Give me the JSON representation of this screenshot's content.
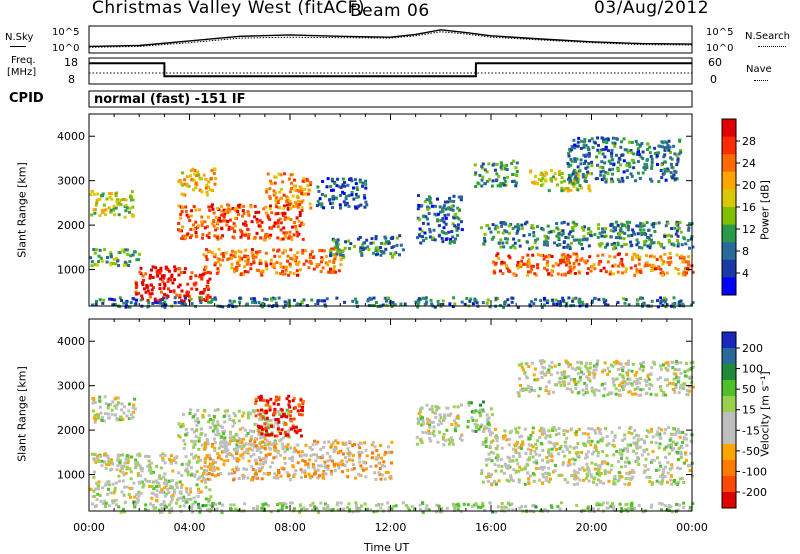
{
  "header": {
    "title": "Christmas Valley West (fitACF)",
    "beam": "Beam 06",
    "date": "03/Aug/2012"
  },
  "panels": {
    "nsky_label": "N.Sky",
    "nsearch_label": "N.Search",
    "freq_label_1": "Freq.",
    "freq_label_2": "[MHz]",
    "nave_label": "Nave",
    "cpid_label": "CPID",
    "cpid_value": "normal (fast) -151 IF",
    "noise_ticks": [
      "10^5",
      "10^0"
    ],
    "freq_ticks": [
      "18",
      "8"
    ],
    "nave_ticks": [
      "60",
      "0"
    ]
  },
  "axes": {
    "ylabel": "Slant Range [km]",
    "xlabel": "Time UT",
    "yticks": [
      "4000",
      "3000",
      "2000",
      "1000"
    ],
    "xticks": [
      "00:00",
      "04:00",
      "08:00",
      "12:00",
      "16:00",
      "20:00",
      "00:00"
    ]
  },
  "power_colorbar": {
    "label": "Power [dB]",
    "ticks": [
      "28",
      "24",
      "20",
      "16",
      "12",
      "8",
      "4"
    ],
    "colors": [
      "#e00000",
      "#ff2a00",
      "#ff6a00",
      "#ffa500",
      "#d8c800",
      "#7fc000",
      "#2a9a4a",
      "#2a6a9a",
      "#1a3aa8",
      "#0000ff"
    ]
  },
  "velocity_colorbar": {
    "label": "Velocity [m s⁻¹]",
    "ticks": [
      "200",
      "100",
      "50",
      "15",
      "-15",
      "-50",
      "-100",
      "-200"
    ],
    "colors": [
      "#1a28c0",
      "#2a6a9a",
      "#1f8a3a",
      "#4ec02a",
      "#9ad050",
      "#bebebe",
      "#bebebe",
      "#ffa500",
      "#ff7a00",
      "#ff4a00",
      "#e00000"
    ]
  },
  "chart_data": [
    {
      "type": "line",
      "name": "noise",
      "x_hours": [
        0,
        2,
        4,
        6,
        8,
        10,
        12,
        13,
        14,
        15,
        16,
        18,
        20,
        22,
        24
      ],
      "series": [
        {
          "name": "N.Sky",
          "values": [
            1.0,
            1.2,
            2.2,
            3.2,
            3.5,
            3.2,
            3.0,
            3.6,
            4.6,
            4.0,
            3.3,
            2.6,
            2.0,
            1.6,
            1.5
          ]
        },
        {
          "name": "N.Search",
          "values": [
            0.8,
            1.0,
            1.8,
            2.8,
            3.0,
            2.9,
            2.8,
            3.3,
            4.2,
            3.7,
            3.0,
            2.4,
            1.8,
            1.4,
            1.3
          ]
        }
      ],
      "ylim": [
        0,
        5
      ]
    },
    {
      "type": "line",
      "name": "frequency",
      "x_hours": [
        0,
        3,
        3,
        15.4,
        15.4,
        24
      ],
      "values": [
        16,
        16,
        11,
        11,
        16,
        16
      ],
      "ylim": [
        8,
        18
      ]
    },
    {
      "type": "heatmap",
      "name": "power",
      "xlim_hours": [
        0,
        24
      ],
      "ylim_km": [
        180,
        4500
      ],
      "ylabel": "Slant Range [km]",
      "regions": [
        {
          "t0": 0.0,
          "t1": 1.8,
          "r0": 2200,
          "r1": 2800,
          "v": 16
        },
        {
          "t0": 0.0,
          "t1": 2.0,
          "r0": 1100,
          "r1": 1500,
          "v": 12
        },
        {
          "t0": 1.8,
          "t1": 4.8,
          "r0": 300,
          "r1": 1100,
          "v": 30
        },
        {
          "t0": 3.5,
          "t1": 5.0,
          "r0": 2700,
          "r1": 3300,
          "v": 20
        },
        {
          "t0": 3.5,
          "t1": 8.5,
          "r0": 1700,
          "r1": 2500,
          "v": 26
        },
        {
          "t0": 7.0,
          "t1": 8.8,
          "r0": 2400,
          "r1": 3200,
          "v": 22
        },
        {
          "t0": 4.5,
          "t1": 10.0,
          "r0": 900,
          "r1": 1500,
          "v": 24
        },
        {
          "t0": 9.5,
          "t1": 12.5,
          "r0": 1300,
          "r1": 1800,
          "v": 10
        },
        {
          "t0": 9.0,
          "t1": 11.0,
          "r0": 2400,
          "r1": 3100,
          "v": 6
        },
        {
          "t0": 13.0,
          "t1": 14.8,
          "r0": 1600,
          "r1": 2700,
          "v": 8
        },
        {
          "t0": 15.5,
          "t1": 24.0,
          "r0": 1500,
          "r1": 2100,
          "v": 10
        },
        {
          "t0": 16.0,
          "t1": 24.0,
          "r0": 900,
          "r1": 1400,
          "v": 24
        },
        {
          "t0": 17.5,
          "t1": 20.0,
          "r0": 2800,
          "r1": 3300,
          "v": 16
        },
        {
          "t0": 15.3,
          "t1": 17.0,
          "r0": 2900,
          "r1": 3500,
          "v": 10
        },
        {
          "t0": 19.0,
          "t1": 23.5,
          "r0": 3000,
          "r1": 4000,
          "v": 8
        },
        {
          "t0": 0.0,
          "t1": 24.0,
          "r0": 180,
          "r1": 400,
          "v": 8
        }
      ]
    },
    {
      "type": "heatmap",
      "name": "velocity",
      "xlim_hours": [
        0,
        24
      ],
      "ylim_km": [
        180,
        4500
      ],
      "ylabel": "Slant Range [km]",
      "regions": [
        {
          "t0": 0.0,
          "t1": 1.8,
          "r0": 2200,
          "r1": 2800,
          "v": 0
        },
        {
          "t0": 0.0,
          "t1": 4.8,
          "r0": 400,
          "r1": 1500,
          "v": 0
        },
        {
          "t0": 3.5,
          "t1": 8.0,
          "r0": 1600,
          "r1": 2500,
          "v": 0
        },
        {
          "t0": 6.5,
          "t1": 8.5,
          "r0": 1900,
          "r1": 2800,
          "v": -200
        },
        {
          "t0": 4.5,
          "t1": 12.0,
          "r0": 900,
          "r1": 1800,
          "v": -60
        },
        {
          "t0": 13.0,
          "t1": 14.8,
          "r0": 1700,
          "r1": 2600,
          "v": 0
        },
        {
          "t0": 15.5,
          "t1": 24.0,
          "r0": 800,
          "r1": 2100,
          "v": 0
        },
        {
          "t0": 17.0,
          "t1": 24.0,
          "r0": 2800,
          "r1": 3600,
          "v": 0
        },
        {
          "t0": 15.0,
          "t1": 16.0,
          "r0": 2000,
          "r1": 2700,
          "v": 40
        },
        {
          "t0": 0.0,
          "t1": 24.0,
          "r0": 180,
          "r1": 400,
          "v": 30
        }
      ]
    }
  ]
}
